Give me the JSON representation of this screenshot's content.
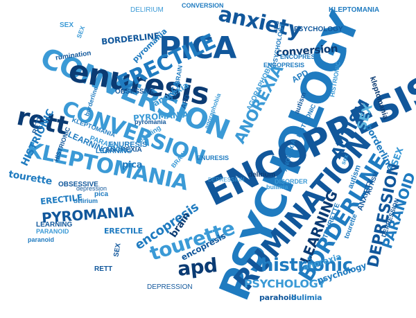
{
  "palette": {
    "navy": "#0b3b73",
    "deep": "#11579b",
    "blue": "#1f7bc0",
    "sky": "#3b9ad6",
    "cyan": "#5bb4de",
    "light": "#8ccbe8"
  },
  "words": [
    "PSYCHOLOGY",
    "ENCOPRESIS",
    "RUMINATION",
    "CONVERSION",
    "enuresis",
    "PICA",
    "anxiety",
    "ERECTILE",
    "CONVERSION",
    "KLEPTOMANIA",
    "rett",
    "BORDERLINE",
    "tourette",
    "PYROMANIA",
    "ANOREXIA",
    "AUTISM",
    "DEPRESSION",
    "LEARNING",
    "histrionic",
    "apd",
    "encopresis",
    "PSYCHOLOGY",
    "SEX",
    "PARANOID",
    "HISTRIONIC",
    "borderline",
    "conversion",
    "DELIRIUM",
    "KLEPTOMANIA",
    "BORDERLINE",
    "pyromania",
    "OBSESSIVE",
    "ERECTILE",
    "tourette",
    "PYROMANIA",
    "encopresis",
    "anorexia",
    "psychology",
    "parahoid",
    "bulimia",
    "DEPRESSION",
    "DEPRESSION",
    "ANXIETY",
    "delirium",
    "kleptomania",
    "LEARNING",
    "brain",
    "pica",
    "anorexia",
    "SEX",
    "rumination",
    "ENCOPRESIS",
    "APD",
    "DISORDER",
    "tourette",
    "PSYCHOLOGY",
    "AGORAPHOBIA",
    "KLEPTOMANIA",
    "SEX",
    "autism",
    "HISTRIONIC",
    "ENURESIS",
    "ANOREXIA",
    "LEARNING",
    "BRAIN",
    "RETT",
    "pica",
    "depression",
    "delirium",
    "PARANOID",
    "TOURETTE",
    "OBSESSIVE",
    "LEARNING",
    "PARANOID",
    "ERECTILE",
    "PICA",
    "apd",
    "SEX",
    "PSYCHOLOGY",
    "ENCOPRESIS",
    "HISTRIONIC",
    "BRAIN",
    "agoraphobia",
    "bulimia",
    "learning",
    "APD",
    "CONVERSION",
    "borderline",
    "autism",
    "sex",
    "ANOREXIA",
    "ENURESIS",
    "SEX",
    "DEPRESSION",
    "paranoid",
    "HISTRIONIC",
    "RETT",
    "AUTISM",
    "pyromania"
  ]
}
